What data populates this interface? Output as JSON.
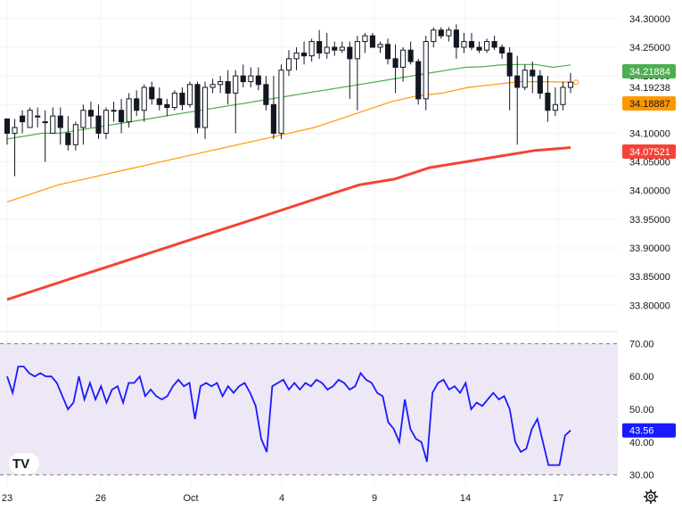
{
  "chart_data": [
    {
      "type": "candlestick",
      "title": "",
      "ylim": [
        33.76,
        34.32
      ],
      "y_ticks": [
        "34.30000",
        "34.25000",
        "34.20000",
        "34.15000",
        "34.10000",
        "34.05000",
        "34.00000",
        "33.95000",
        "33.90000",
        "33.85000",
        "33.80000"
      ],
      "x_tick_labels": [
        "23",
        "26",
        "Oct",
        "4",
        "9",
        "14",
        "17"
      ],
      "candles": [
        [
          34.125,
          34.125,
          34.08,
          34.1
        ],
        [
          34.1,
          34.125,
          34.025,
          34.11
        ],
        [
          34.13,
          34.14,
          34.1,
          34.12
        ],
        [
          34.11,
          34.145,
          34.11,
          34.14
        ],
        [
          34.13,
          34.145,
          34.11,
          34.13
        ],
        [
          34.12,
          34.14,
          34.05,
          34.12
        ],
        [
          34.1,
          34.145,
          34.1,
          34.13
        ],
        [
          34.13,
          34.145,
          34.08,
          34.11
        ],
        [
          34.1,
          34.13,
          34.07,
          34.08
        ],
        [
          34.08,
          34.12,
          34.07,
          34.115
        ],
        [
          34.11,
          34.15,
          34.08,
          34.14
        ],
        [
          34.14,
          34.155,
          34.11,
          34.13
        ],
        [
          34.13,
          34.15,
          34.09,
          34.1
        ],
        [
          34.1,
          34.145,
          34.09,
          34.14
        ],
        [
          34.14,
          34.155,
          34.12,
          34.14
        ],
        [
          34.14,
          34.16,
          34.1,
          34.12
        ],
        [
          34.12,
          34.17,
          34.11,
          34.16
        ],
        [
          34.16,
          34.175,
          34.13,
          34.14
        ],
        [
          34.14,
          34.185,
          34.12,
          34.18
        ],
        [
          34.18,
          34.19,
          34.15,
          34.16
        ],
        [
          34.16,
          34.18,
          34.14,
          34.15
        ],
        [
          34.15,
          34.16,
          34.13,
          34.145
        ],
        [
          34.145,
          34.175,
          34.14,
          34.17
        ],
        [
          34.17,
          34.18,
          34.14,
          34.15
        ],
        [
          34.15,
          34.19,
          34.145,
          34.185
        ],
        [
          34.185,
          34.19,
          34.1,
          34.11
        ],
        [
          34.11,
          34.19,
          34.09,
          34.18
        ],
        [
          34.18,
          34.195,
          34.17,
          34.185
        ],
        [
          34.185,
          34.2,
          34.17,
          34.19
        ],
        [
          34.19,
          34.21,
          34.15,
          34.17
        ],
        [
          34.17,
          34.21,
          34.1,
          34.2
        ],
        [
          34.2,
          34.22,
          34.18,
          34.19
        ],
        [
          34.19,
          34.215,
          34.18,
          34.2
        ],
        [
          34.2,
          34.215,
          34.175,
          34.185
        ],
        [
          34.185,
          34.2,
          34.14,
          34.15
        ],
        [
          34.15,
          34.2,
          34.09,
          34.1
        ],
        [
          34.1,
          34.22,
          34.09,
          34.21
        ],
        [
          34.21,
          34.245,
          34.2,
          34.23
        ],
        [
          34.23,
          34.25,
          34.21,
          34.24
        ],
        [
          34.24,
          34.26,
          34.22,
          34.235
        ],
        [
          34.235,
          34.265,
          34.225,
          34.26
        ],
        [
          34.26,
          34.28,
          34.23,
          34.24
        ],
        [
          34.24,
          34.275,
          34.23,
          34.25
        ],
        [
          34.25,
          34.26,
          34.235,
          34.245
        ],
        [
          34.245,
          34.26,
          34.24,
          34.25
        ],
        [
          34.25,
          34.26,
          34.16,
          34.23
        ],
        [
          34.23,
          34.27,
          34.14,
          34.26
        ],
        [
          34.26,
          34.275,
          34.24,
          34.27
        ],
        [
          34.27,
          34.275,
          34.25,
          34.25
        ],
        [
          34.25,
          34.26,
          34.24,
          34.255
        ],
        [
          34.255,
          34.265,
          34.22,
          34.23
        ],
        [
          34.23,
          34.255,
          34.17,
          34.215
        ],
        [
          34.215,
          34.25,
          34.19,
          34.245
        ],
        [
          34.245,
          34.26,
          34.22,
          34.225
        ],
        [
          34.225,
          34.23,
          34.15,
          34.16
        ],
        [
          34.16,
          34.27,
          34.14,
          34.26
        ],
        [
          34.26,
          34.285,
          34.25,
          34.28
        ],
        [
          34.28,
          34.285,
          34.265,
          34.27
        ],
        [
          34.27,
          34.285,
          34.26,
          34.28
        ],
        [
          34.28,
          34.29,
          34.23,
          34.25
        ],
        [
          34.25,
          34.275,
          34.24,
          34.26
        ],
        [
          34.26,
          34.275,
          34.245,
          34.25
        ],
        [
          34.25,
          34.26,
          34.24,
          34.245
        ],
        [
          34.245,
          34.265,
          34.24,
          34.26
        ],
        [
          34.26,
          34.27,
          34.245,
          34.25
        ],
        [
          34.25,
          34.255,
          34.23,
          34.24
        ],
        [
          34.24,
          34.25,
          34.14,
          34.2
        ],
        [
          34.2,
          34.235,
          34.08,
          34.18
        ],
        [
          34.18,
          34.22,
          34.175,
          34.21
        ],
        [
          34.21,
          34.225,
          34.17,
          34.2
        ],
        [
          34.2,
          34.21,
          34.16,
          34.17
        ],
        [
          34.17,
          34.2,
          34.12,
          34.14
        ],
        [
          34.14,
          34.18,
          34.13,
          34.15
        ],
        [
          34.15,
          34.19,
          34.14,
          34.18
        ],
        [
          34.18,
          34.205,
          34.17,
          34.189
        ]
      ],
      "series": [
        {
          "name": "",
          "color": "#4caf50",
          "values": [
            34.09,
            34.095,
            34.1,
            34.1,
            34.105,
            34.11,
            34.115,
            34.12,
            34.125,
            34.13,
            34.135,
            34.14,
            34.145,
            34.15,
            34.155,
            34.16,
            34.165,
            34.17,
            34.175,
            34.18,
            34.185,
            34.19,
            34.195,
            34.2,
            34.205,
            34.21,
            34.215,
            34.216,
            34.219,
            34.22,
            34.22,
            34.215,
            34.219
          ]
        },
        {
          "name": "",
          "color": "#ff9800",
          "values": [
            33.98,
            33.995,
            34.01,
            34.02,
            34.03,
            34.04,
            34.05,
            34.06,
            34.07,
            34.08,
            34.09,
            34.1,
            34.11,
            34.125,
            34.14,
            34.155,
            34.165,
            34.17,
            34.18,
            34.185,
            34.19,
            34.19,
            34.189
          ]
        },
        {
          "name": "",
          "color": "#f44336",
          "values": [
            33.81,
            33.83,
            33.85,
            33.87,
            33.89,
            33.91,
            33.93,
            33.95,
            33.97,
            33.99,
            34.01,
            34.02,
            34.04,
            34.05,
            34.06,
            34.07,
            34.075
          ]
        }
      ],
      "price_labels": [
        {
          "text": "34.21884",
          "bg": "#4caf50",
          "fg": "#ffffff",
          "value": 34.21884
        },
        {
          "text": "34.19238",
          "bg": "#ffffff",
          "fg": "#131722",
          "value": 34.19238
        },
        {
          "text": "34.18887",
          "bg": "#ff9800",
          "fg": "#131722",
          "value": 34.18887
        },
        {
          "text": "34.07521",
          "bg": "#f44336",
          "fg": "#ffffff",
          "value": 34.07521
        }
      ]
    },
    {
      "type": "line",
      "ylim": [
        28,
        72
      ],
      "y_ticks": [
        "70.00",
        "60.00",
        "50.00",
        "40.00",
        "30.00"
      ],
      "band": [
        30,
        70
      ],
      "series": [
        {
          "name": "",
          "color": "#1a1aff",
          "values": [
            60,
            55,
            63,
            63,
            61,
            60,
            61,
            60,
            60,
            58,
            54,
            50,
            52,
            60,
            53,
            58,
            53,
            57,
            52,
            56,
            57,
            52,
            58,
            58,
            60,
            54,
            56,
            54,
            53,
            54,
            57,
            59,
            57,
            58,
            47,
            57,
            58,
            57,
            58,
            54,
            57,
            55,
            57,
            58,
            55,
            51,
            41,
            37,
            57,
            58,
            59,
            56,
            58,
            56,
            58,
            57,
            59,
            58,
            56,
            57,
            59,
            58,
            56,
            57,
            61,
            59,
            58,
            55,
            54,
            46,
            44,
            40,
            53,
            44,
            41,
            40,
            34,
            55,
            58,
            59,
            56,
            57,
            55,
            58,
            50,
            52,
            51,
            53,
            55,
            53,
            54,
            50,
            40,
            37,
            38,
            44,
            47,
            40,
            33,
            33,
            33,
            42,
            43.56
          ]
        }
      ],
      "value_label": {
        "text": "43.56",
        "bg": "#1a1aff",
        "fg": "#ffffff",
        "value": 43.56
      }
    }
  ],
  "colors": {
    "up": "#131722",
    "down": "#131722",
    "gridline": "#f0f3fa",
    "rsi_band": "#ede7f6",
    "accent": "#1a1aff"
  },
  "toolbar": {
    "logo_text": "TV",
    "settings_icon": "gear-icon"
  }
}
